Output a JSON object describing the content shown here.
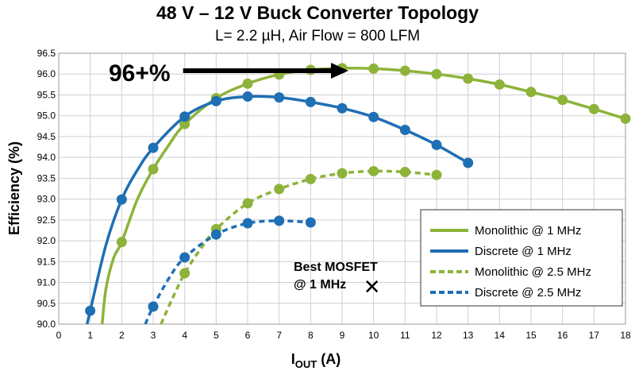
{
  "chart_data": {
    "type": "line",
    "title": "48 V – 12 V Buck Converter Topology",
    "subtitle": "L= 2.2 µH, Air Flow = 800 LFM",
    "ylabel": "Efficiency (%)",
    "xlabel_main": "I",
    "xlabel_sub": "OUT",
    "xlabel_unit": " (A)",
    "xlim": [
      0,
      18
    ],
    "ylim": [
      90.0,
      96.5
    ],
    "xticks": [
      0,
      1,
      2,
      3,
      4,
      5,
      6,
      7,
      8,
      9,
      10,
      11,
      12,
      13,
      14,
      15,
      16,
      17,
      18
    ],
    "yticks": [
      "90.0",
      "90.5",
      "91.0",
      "91.5",
      "92.0",
      "92.5",
      "93.0",
      "93.5",
      "94.0",
      "94.5",
      "95.0",
      "95.5",
      "96.0",
      "96.5"
    ],
    "grid": true,
    "legend_position": "bottom-right",
    "series": [
      {
        "name": "Monolithic @ 1 MHz",
        "color": "#8db33a",
        "dashed": false,
        "points": [
          [
            4,
            94.8
          ],
          [
            5,
            95.42
          ],
          [
            6,
            95.77
          ],
          [
            7,
            95.99
          ],
          [
            8,
            96.1
          ],
          [
            9,
            96.14
          ],
          [
            10,
            96.13
          ],
          [
            11,
            96.08
          ],
          [
            12,
            96.0
          ],
          [
            13,
            95.89
          ],
          [
            14,
            95.75
          ],
          [
            15,
            95.57
          ],
          [
            16,
            95.38
          ],
          [
            17,
            95.16
          ],
          [
            18,
            94.93
          ]
        ],
        "curve": [
          [
            1.38,
            90.0
          ],
          [
            1.5,
            90.85
          ],
          [
            1.75,
            91.6
          ],
          [
            2,
            91.97
          ],
          [
            2.5,
            93.0
          ],
          [
            3,
            93.72
          ],
          [
            3.5,
            94.3
          ],
          [
            4,
            94.8
          ],
          [
            5,
            95.42
          ],
          [
            6,
            95.77
          ],
          [
            7,
            95.99
          ],
          [
            8,
            96.1
          ],
          [
            9,
            96.14
          ],
          [
            10,
            96.13
          ],
          [
            11,
            96.08
          ],
          [
            12,
            96.0
          ],
          [
            13,
            95.89
          ],
          [
            14,
            95.75
          ],
          [
            15,
            95.57
          ],
          [
            16,
            95.38
          ],
          [
            17,
            95.16
          ],
          [
            18,
            94.93
          ]
        ],
        "extra_points": [
          [
            2,
            91.97
          ],
          [
            3,
            93.72
          ]
        ]
      },
      {
        "name": "Discrete @ 1 MHz",
        "color": "#1f6fb4",
        "dashed": false,
        "points": [
          [
            1,
            90.32
          ],
          [
            2,
            92.99
          ],
          [
            3,
            94.23
          ],
          [
            4,
            94.98
          ],
          [
            5,
            95.35
          ],
          [
            6,
            95.46
          ],
          [
            7,
            95.44
          ],
          [
            8,
            95.33
          ],
          [
            9,
            95.18
          ],
          [
            10,
            94.97
          ],
          [
            11,
            94.66
          ],
          [
            12,
            94.3
          ],
          [
            13,
            93.87
          ]
        ],
        "curve": [
          [
            0.9,
            90.0
          ],
          [
            1,
            90.32
          ],
          [
            1.5,
            91.9
          ],
          [
            2,
            92.99
          ],
          [
            2.5,
            93.7
          ],
          [
            3,
            94.23
          ],
          [
            4,
            94.98
          ],
          [
            5,
            95.35
          ],
          [
            6,
            95.46
          ],
          [
            7,
            95.44
          ],
          [
            8,
            95.33
          ],
          [
            9,
            95.18
          ],
          [
            10,
            94.97
          ],
          [
            11,
            94.66
          ],
          [
            12,
            94.3
          ],
          [
            13,
            93.87
          ]
        ]
      },
      {
        "name": "Monolithic @ 2.5 MHz",
        "color": "#8db33a",
        "dashed": true,
        "points": [
          [
            4,
            91.22
          ],
          [
            5,
            92.28
          ],
          [
            6,
            92.9
          ],
          [
            7,
            93.24
          ],
          [
            8,
            93.48
          ],
          [
            9,
            93.62
          ],
          [
            10,
            93.67
          ],
          [
            11,
            93.65
          ],
          [
            12,
            93.58
          ]
        ],
        "curve": [
          [
            3.25,
            90.0
          ],
          [
            3.6,
            90.6
          ],
          [
            4,
            91.22
          ],
          [
            4.5,
            91.8
          ],
          [
            5,
            92.28
          ],
          [
            6,
            92.9
          ],
          [
            7,
            93.24
          ],
          [
            8,
            93.48
          ],
          [
            9,
            93.62
          ],
          [
            10,
            93.67
          ],
          [
            11,
            93.65
          ],
          [
            12,
            93.58
          ]
        ]
      },
      {
        "name": "Discrete @ 2.5 MHz",
        "color": "#1f6fb4",
        "dashed": true,
        "points": [
          [
            3,
            90.42
          ],
          [
            4,
            91.6
          ],
          [
            5,
            92.15
          ],
          [
            6,
            92.42
          ],
          [
            7,
            92.48
          ],
          [
            8,
            92.44
          ]
        ],
        "curve": [
          [
            2.75,
            90.0
          ],
          [
            3,
            90.42
          ],
          [
            3.5,
            91.1
          ],
          [
            4,
            91.6
          ],
          [
            5,
            92.15
          ],
          [
            6,
            92.42
          ],
          [
            7,
            92.48
          ],
          [
            8,
            92.44
          ]
        ]
      }
    ],
    "annotations": {
      "arrow_label": "96+%",
      "arrow_from": [
        4,
        96.08
      ],
      "arrow_to": [
        9.2,
        96.1
      ],
      "best_line1": "Best MOSFET",
      "best_line2": "@ 1 MHz",
      "best_point": [
        10,
        90.9
      ],
      "best_marker": "✕"
    }
  }
}
